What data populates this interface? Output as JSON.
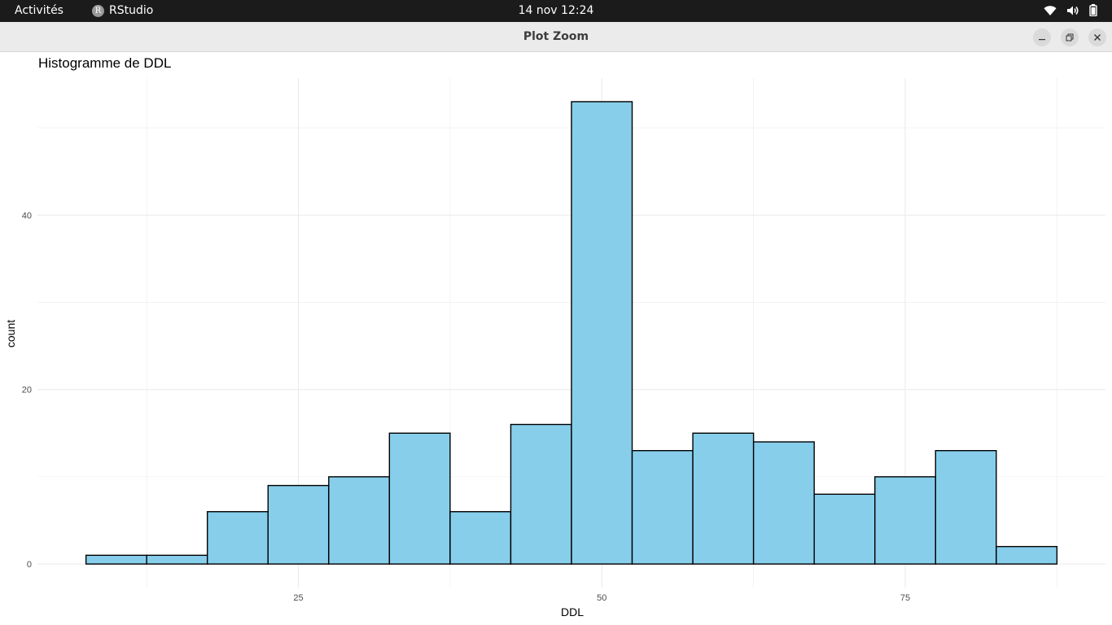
{
  "topbar": {
    "activities": "Activités",
    "app_name": "RStudio",
    "app_icon": "rstudio-r-icon",
    "app_icon_letter": "R",
    "clock": "14 nov  12:24",
    "tray_icons": [
      "wifi-icon",
      "volume-icon",
      "battery-icon"
    ]
  },
  "window": {
    "title": "Plot Zoom",
    "buttons": [
      "minimize-icon",
      "restore-icon",
      "close-icon"
    ]
  },
  "plot": {
    "title": "Histogramme de DDL"
  },
  "chart_data": {
    "type": "bar",
    "subtype": "histogram",
    "title": "Histogramme de DDL",
    "xlabel": "DDL",
    "ylabel": "count",
    "bin_width": 5,
    "bins": [
      {
        "x0": 7.5,
        "x1": 12.5,
        "count": 1
      },
      {
        "x0": 12.5,
        "x1": 17.5,
        "count": 1
      },
      {
        "x0": 17.5,
        "x1": 22.5,
        "count": 6
      },
      {
        "x0": 22.5,
        "x1": 27.5,
        "count": 9
      },
      {
        "x0": 27.5,
        "x1": 32.5,
        "count": 10
      },
      {
        "x0": 32.5,
        "x1": 37.5,
        "count": 15
      },
      {
        "x0": 37.5,
        "x1": 42.5,
        "count": 6
      },
      {
        "x0": 42.5,
        "x1": 47.5,
        "count": 16
      },
      {
        "x0": 47.5,
        "x1": 52.5,
        "count": 53
      },
      {
        "x0": 52.5,
        "x1": 57.5,
        "count": 13
      },
      {
        "x0": 57.5,
        "x1": 62.5,
        "count": 15
      },
      {
        "x0": 62.5,
        "x1": 67.5,
        "count": 14
      },
      {
        "x0": 67.5,
        "x1": 72.5,
        "count": 8
      },
      {
        "x0": 72.5,
        "x1": 77.5,
        "count": 10
      },
      {
        "x0": 77.5,
        "x1": 82.5,
        "count": 13
      },
      {
        "x0": 82.5,
        "x1": 87.5,
        "count": 2
      }
    ],
    "xlim": [
      3.5,
      91.5
    ],
    "ylim": [
      -2.7,
      55.7
    ],
    "x_ticks": [
      25,
      50,
      75
    ],
    "y_ticks": [
      0,
      20,
      40
    ],
    "x_minor_grid": [
      12.5,
      37.5,
      62.5,
      87.5
    ],
    "y_minor_grid": [
      10,
      30,
      50
    ],
    "grid": true,
    "legend": "none",
    "bar_fill": "#87ceeb",
    "bar_outline": "#000000",
    "grid_color": "#ebebeb"
  }
}
